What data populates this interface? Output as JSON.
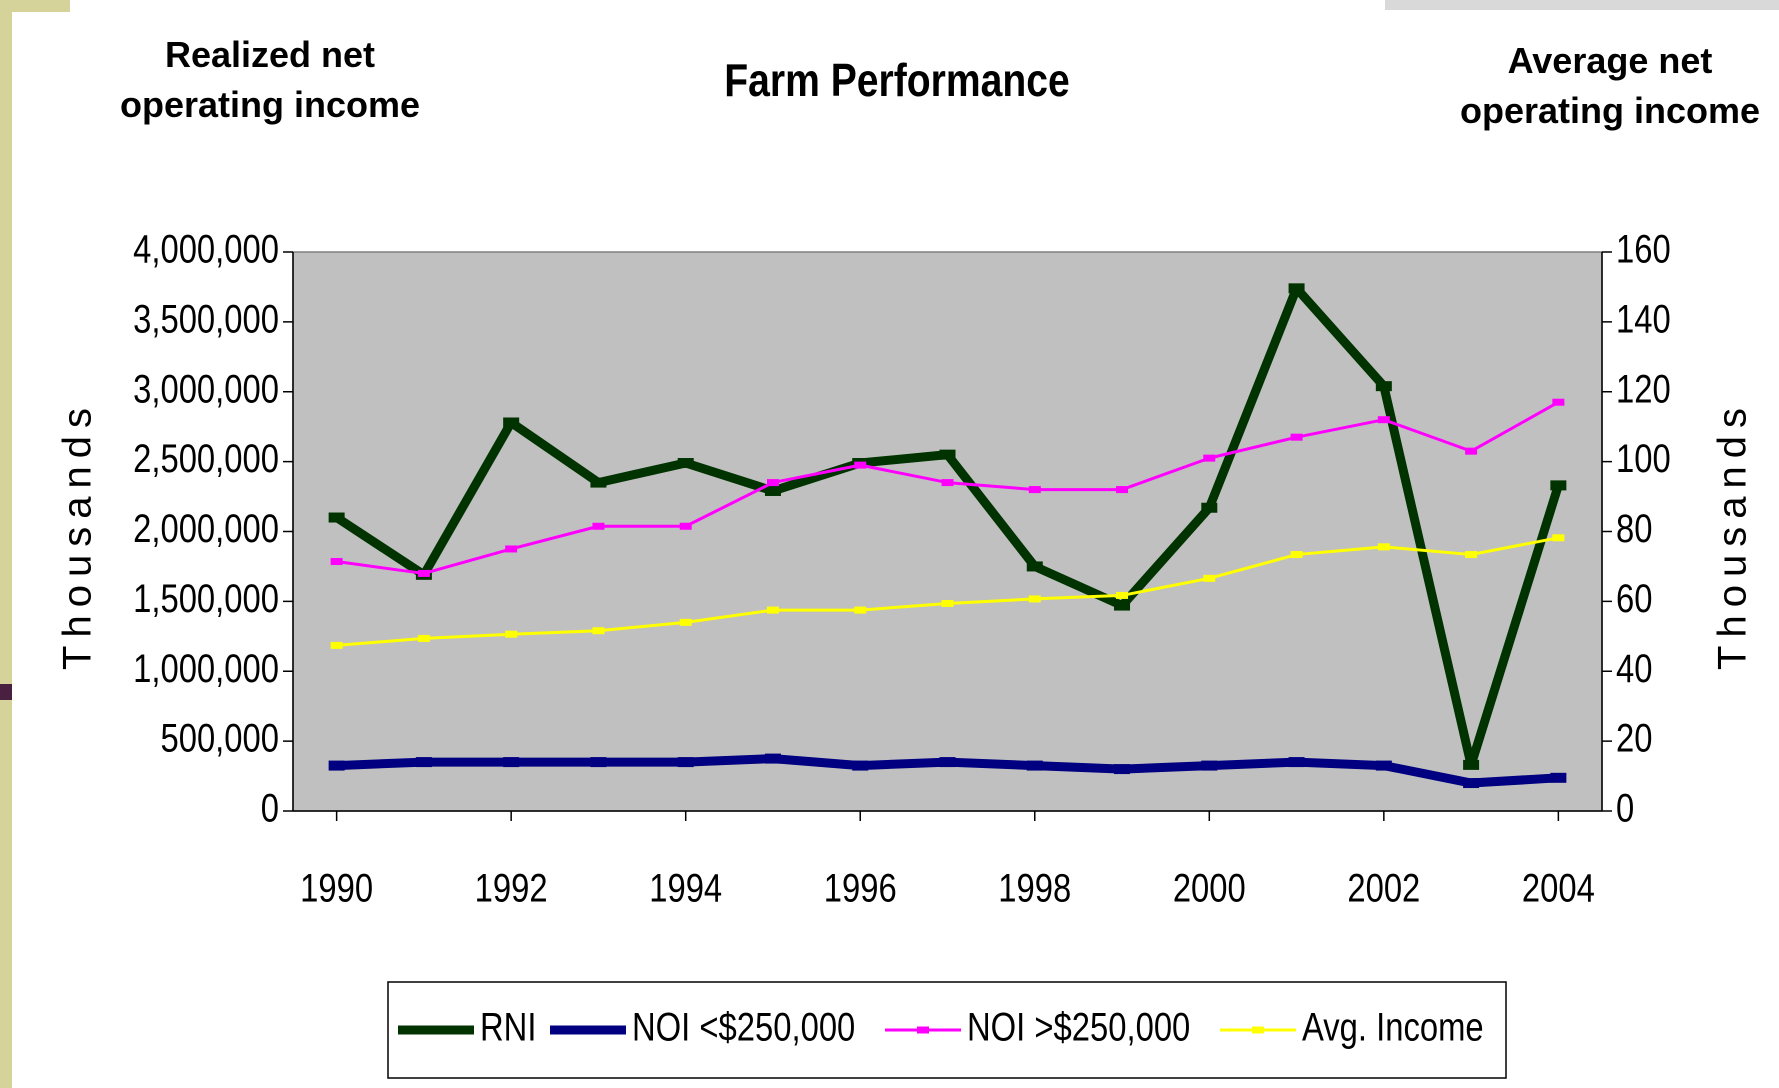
{
  "chart_data": {
    "type": "line",
    "title": "Farm Performance",
    "y_title": "Realized net operating income",
    "y2_title": "Average net operating income",
    "y_label": "Thousands",
    "y2_label": "Thousands",
    "x": [
      1990,
      1991,
      1992,
      1993,
      1994,
      1995,
      1996,
      1997,
      1998,
      1999,
      2000,
      2001,
      2002,
      2003,
      2004
    ],
    "xlim": [
      1989.5,
      2004.5
    ],
    "xticks": [
      1990,
      1992,
      1994,
      1996,
      1998,
      2000,
      2002,
      2004
    ],
    "ylim": [
      0,
      4000000
    ],
    "yticks": [
      0,
      {
        "value": 500000,
        "label": "500,000"
      },
      {
        "value": 1000000,
        "label": "1,000,000"
      },
      {
        "value": 1500000,
        "label": "1,500,000"
      },
      {
        "value": 2000000,
        "label": "2,000,000"
      },
      {
        "value": 2500000,
        "label": "2,500,000"
      },
      {
        "value": 3000000,
        "label": "3,000,000"
      },
      {
        "value": 3500000,
        "label": "3,500,000"
      },
      {
        "value": 4000000,
        "label": "4,000,000"
      }
    ],
    "y2lim": [
      0,
      160
    ],
    "y2ticks": [
      0,
      20,
      40,
      60,
      80,
      100,
      120,
      140,
      160
    ],
    "legend": "bottom",
    "series": [
      {
        "name": "RNI",
        "color": "#003300",
        "axis": "y",
        "values": [
          2100000,
          1690000,
          2780000,
          2350000,
          2490000,
          2290000,
          2490000,
          2550000,
          1750000,
          1470000,
          2170000,
          3740000,
          3040000,
          330000,
          2330000
        ]
      },
      {
        "name": "NOI <$250,000",
        "color": "#000080",
        "axis": "y2",
        "values": [
          13,
          14,
          14,
          14,
          14,
          15,
          13,
          14,
          13,
          12,
          13,
          14,
          13,
          8,
          9.5
        ]
      },
      {
        "name": "NOI >$250,000",
        "color": "#ff00ff",
        "axis": "y2",
        "values": [
          71.4,
          68,
          75,
          81.5,
          81.5,
          94,
          99,
          94,
          92,
          92,
          101,
          107,
          112,
          103,
          117
        ]
      },
      {
        "name": "Avg. Income",
        "color": "#ffff00",
        "axis": "y2",
        "values": [
          47.4,
          49.4,
          50.6,
          51.6,
          54,
          57.5,
          57.5,
          59.4,
          60.7,
          61.7,
          66.6,
          73.4,
          75.6,
          73.4,
          78.2
        ]
      }
    ]
  }
}
